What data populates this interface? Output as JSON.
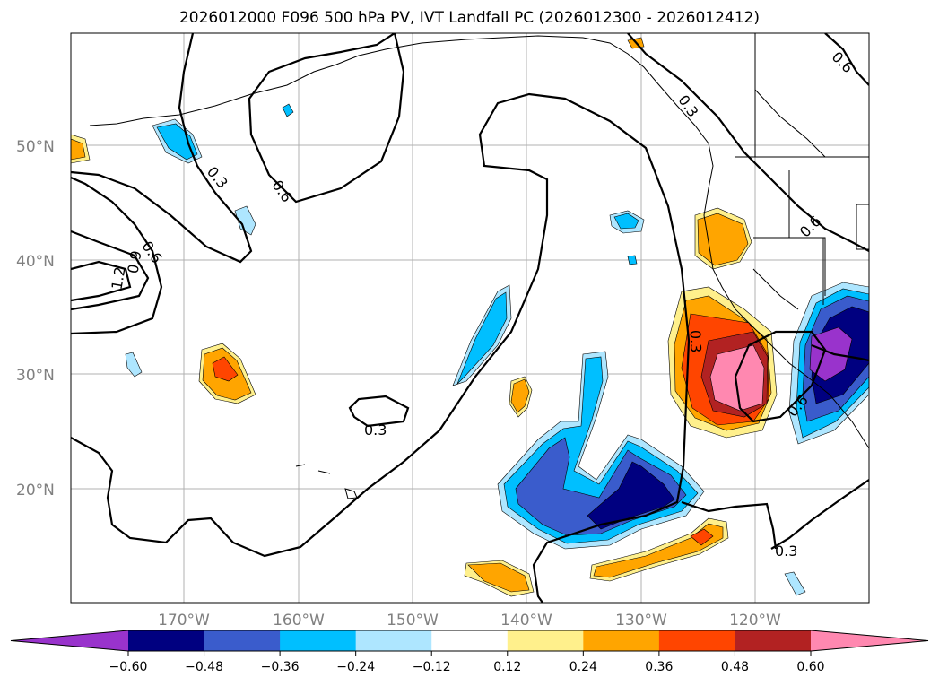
{
  "title": "2026012000 F096 500 hPa PV, IVT Landfall PC (2026012300 - 2026012412)",
  "lat_labels": [
    "50°N",
    "40°N",
    "30°N",
    "20°N"
  ],
  "lon_labels": [
    "170°W",
    "160°W",
    "150°W",
    "140°W",
    "130°W",
    "120°W"
  ],
  "contour_labels": [
    "0.3",
    "0.6",
    "1.2",
    "0.9"
  ],
  "colorbar": {
    "ticks": [
      "−0.60",
      "−0.48",
      "−0.36",
      "−0.24",
      "−0.12",
      "0.12",
      "0.24",
      "0.36",
      "0.48",
      "0.60"
    ],
    "colors": [
      "#9933cc",
      "#000080",
      "#3a5ccc",
      "#00bfff",
      "#aee6ff",
      "#ffffff",
      "#fff08c",
      "#ffa500",
      "#ff4500",
      "#b22222",
      "#ff88b0"
    ]
  }
}
